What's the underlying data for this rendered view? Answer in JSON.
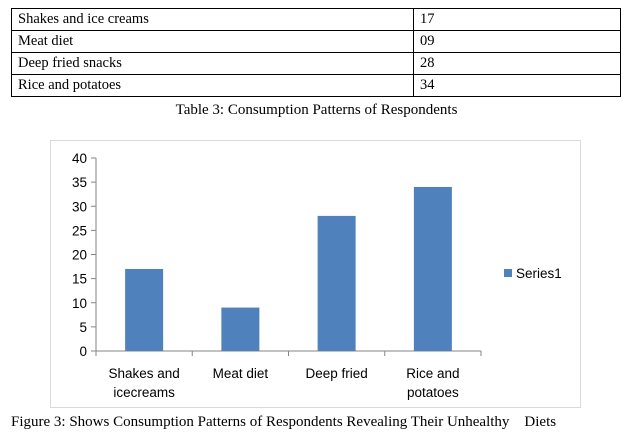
{
  "table": {
    "rows": [
      {
        "item": "Shakes and ice creams",
        "value": "17"
      },
      {
        "item": "Meat diet",
        "value": "09"
      },
      {
        "item": "Deep fried snacks",
        "value": "28"
      },
      {
        "item": "Rice and potatoes",
        "value": "34"
      }
    ],
    "caption": "Table 3: Consumption Patterns of Respondents"
  },
  "figure_caption": "Figure 3: Shows Consumption Patterns of Respondents Revealing Their Unhealthy    Diets",
  "chart_data": {
    "type": "bar",
    "categories": [
      [
        "Shakes and",
        "icecreams"
      ],
      [
        "Meat diet"
      ],
      [
        "Deep fried"
      ],
      [
        "Rice and",
        "potatoes"
      ]
    ],
    "series": [
      {
        "name": "Series1",
        "values": [
          17,
          9,
          28,
          34
        ],
        "color": "#4f81bd"
      }
    ],
    "ylim": [
      0,
      40
    ],
    "yticks": [
      "0",
      "5",
      "10",
      "15",
      "20",
      "25",
      "30",
      "35",
      "40"
    ],
    "grid": false,
    "legend": "right"
  }
}
